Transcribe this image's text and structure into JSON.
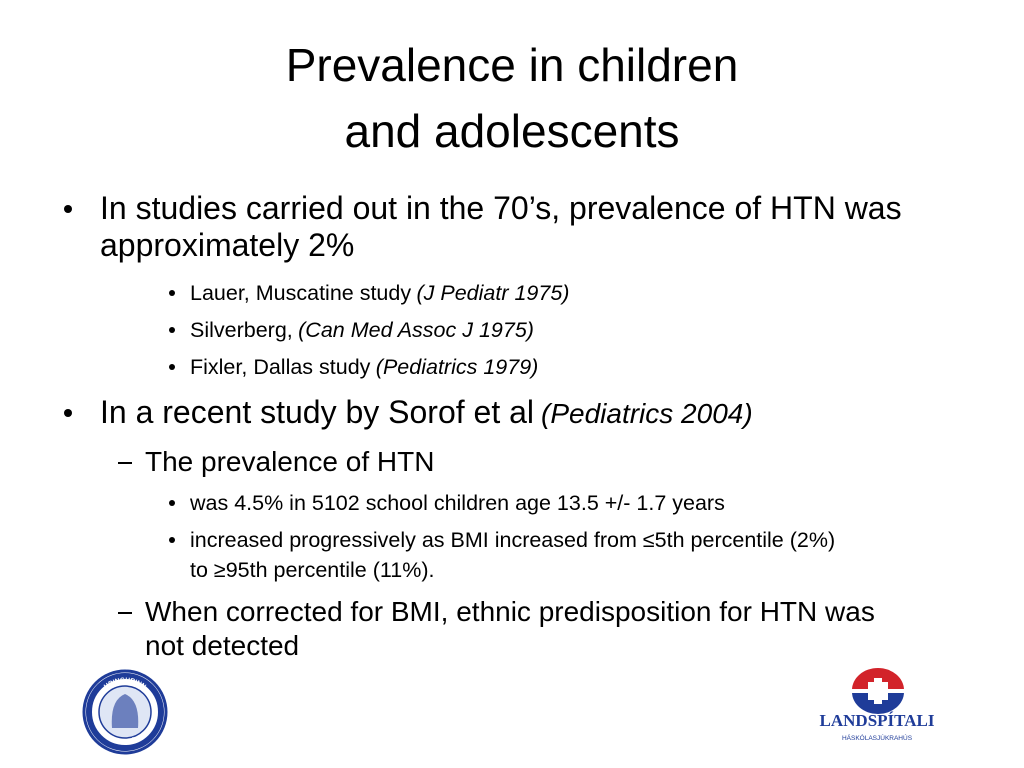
{
  "title": [
    "Prevalence in children",
    "and adolescents"
  ],
  "bullets": [
    {
      "text": "In studies carried out in the 70’s, prevalence of HTN was approximately 2%",
      "items": [
        {
          "text": "Lauer, Muscatine study",
          "cite": "(J Pediatr 1975)"
        },
        {
          "text": "Silverberg,",
          "cite": "(Can Med Assoc J 1975)"
        },
        {
          "text": "Fixler, Dallas study",
          "cite": "(Pediatrics 1979)"
        }
      ]
    },
    {
      "text": "In a recent study by Sorof et al",
      "cite": "(Pediatrics 2004)",
      "items": [
        {
          "text": "The prevalence of HTN",
          "items": [
            {
              "text": "was 4.5% in 5102 school children age 13.5 +/- 1.7 years"
            },
            {
              "text": "increased progressively as BMI increased from ≤5th percentile (2%) to ≥95th percentile (11%)."
            }
          ]
        },
        {
          "text": "When corrected for BMI, ethnic predisposition for HTN was not detected"
        }
      ]
    }
  ],
  "logos": {
    "left": [
      "HRINGURINN",
      "BARNASPÍTALI"
    ],
    "right": {
      "name": "LANDSPÍTALI",
      "subtitle": "HÁSKÓLASJÚKRAHÚS"
    }
  }
}
